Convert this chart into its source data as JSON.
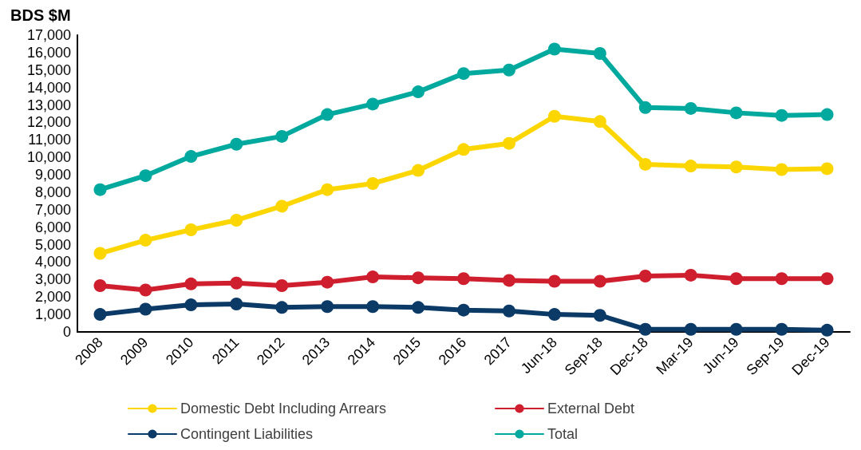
{
  "chart_data": {
    "type": "line",
    "ylabel": "BDS $M",
    "categories": [
      "2008",
      "2009",
      "2010",
      "2011",
      "2012",
      "2013",
      "2014",
      "2015",
      "2016",
      "2017",
      "Jun-18",
      "Sep-18",
      "Dec-18",
      "Mar-19",
      "Jun-19",
      "Sep-19",
      "Dec-19"
    ],
    "series": [
      {
        "name": "Domestic Debt Including Arrears",
        "color": "#fcd600",
        "values": [
          4500,
          5250,
          5850,
          6400,
          7200,
          8150,
          8500,
          9250,
          10450,
          10800,
          12350,
          12050,
          9600,
          9500,
          9450,
          9300,
          9350
        ]
      },
      {
        "name": "External Debt",
        "color": "#cf1f2e",
        "values": [
          2650,
          2400,
          2750,
          2800,
          2650,
          2850,
          3150,
          3100,
          3050,
          2950,
          2900,
          2900,
          3200,
          3250,
          3050,
          3050,
          3050
        ]
      },
      {
        "name": "Contingent Liabilities",
        "color": "#0b3a66",
        "values": [
          1000,
          1300,
          1550,
          1600,
          1400,
          1450,
          1450,
          1400,
          1250,
          1200,
          1000,
          950,
          150,
          150,
          150,
          150,
          100
        ]
      },
      {
        "name": "Total",
        "color": "#00a99d",
        "values": [
          8150,
          8950,
          10050,
          10750,
          11200,
          12450,
          13050,
          13750,
          14800,
          15000,
          16200,
          15950,
          12850,
          12800,
          12550,
          12400,
          12450
        ]
      }
    ],
    "ylim": [
      0,
      17000
    ],
    "yticks": [
      0,
      {
        "value": 1000,
        "label": "1,000"
      },
      {
        "value": 2000,
        "label": "2,000"
      },
      {
        "value": 3000,
        "label": "3,000"
      },
      {
        "value": 4000,
        "label": "4,000"
      },
      {
        "value": 5000,
        "label": "5,000"
      },
      {
        "value": 6000,
        "label": "6,000"
      },
      {
        "value": 7000,
        "label": "7,000"
      },
      {
        "value": 8000,
        "label": "8,000"
      },
      {
        "value": 9000,
        "label": "9,000"
      },
      {
        "value": 10000,
        "label": "10,000"
      },
      {
        "value": 11000,
        "label": "11,000"
      },
      {
        "value": 12000,
        "label": "12,000"
      },
      {
        "value": 13000,
        "label": "13,000"
      },
      {
        "value": 14000,
        "label": "14,000"
      },
      {
        "value": 15000,
        "label": "15,000"
      },
      {
        "value": 16000,
        "label": "16,000"
      },
      {
        "value": 17000,
        "label": "17,000"
      }
    ],
    "grid": false,
    "legend": "bottom",
    "marker": "circle",
    "line_style": "solid"
  }
}
